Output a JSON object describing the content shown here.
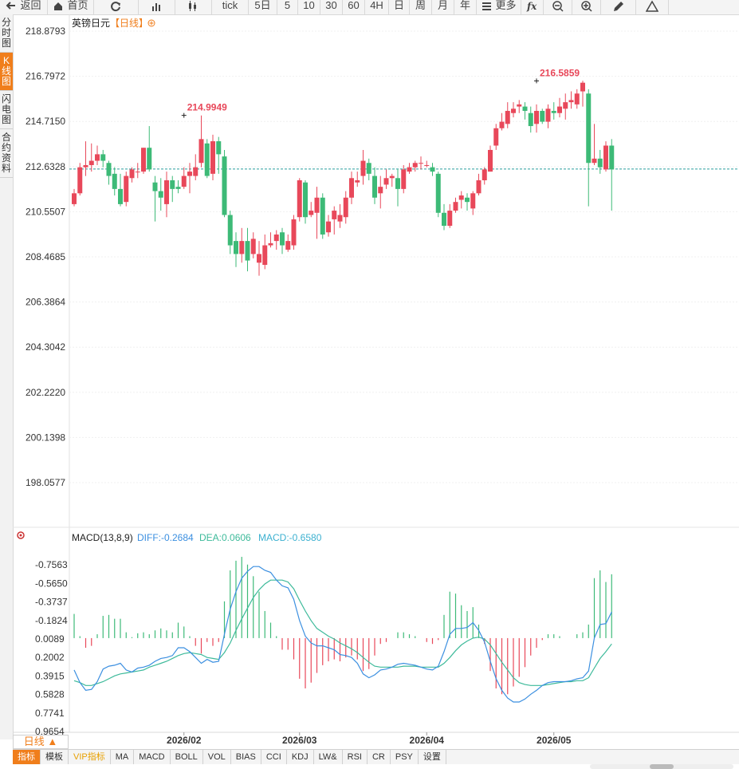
{
  "toolbar": [
    {
      "label": "返回",
      "icon": "back-arrow-icon"
    },
    {
      "label": "首页",
      "icon": "home-icon"
    },
    {
      "label": "",
      "icon": "refresh-icon"
    },
    {
      "label": "",
      "icon": "bar-chart-icon"
    },
    {
      "label": "",
      "icon": "candlestick-icon"
    },
    {
      "label": "tick",
      "icon": ""
    },
    {
      "label": "5日",
      "icon": ""
    },
    {
      "label": "5",
      "icon": ""
    },
    {
      "label": "10",
      "icon": ""
    },
    {
      "label": "30",
      "icon": ""
    },
    {
      "label": "60",
      "icon": ""
    },
    {
      "label": "4H",
      "icon": ""
    },
    {
      "label": "日",
      "icon": ""
    },
    {
      "label": "周",
      "icon": ""
    },
    {
      "label": "月",
      "icon": ""
    },
    {
      "label": "年",
      "icon": ""
    },
    {
      "label": "更多",
      "icon": "menu-icon"
    },
    {
      "label": "",
      "icon": "function-icon"
    },
    {
      "label": "",
      "icon": "zoom-out-icon"
    },
    {
      "label": "",
      "icon": "zoom-in-icon"
    },
    {
      "label": "",
      "icon": "pen-icon"
    },
    {
      "label": "",
      "icon": "triangle-icon"
    }
  ],
  "sidebar": [
    {
      "label": "分时图",
      "active": false
    },
    {
      "label": "K线图",
      "active": true
    },
    {
      "label": "闪电图",
      "active": false
    },
    {
      "label": "合约资料",
      "active": false
    }
  ],
  "header": {
    "title": "英镑日元",
    "period": "【日线】",
    "add_icon": "add-circle-icon"
  },
  "macd_header": {
    "label": "MACD(13,8,9)",
    "diff": "DIFF:-0.2684",
    "dea": "DEA:0.0606",
    "macd": "MACD:-0.6580",
    "icon": "gear-icon"
  },
  "period_selector": {
    "label": "日线 ▲"
  },
  "indicator_tabs": [
    {
      "label": "指标",
      "active": true
    },
    {
      "label": "模板"
    },
    {
      "label": "VIP指标",
      "vip": true
    },
    {
      "label": "MA"
    },
    {
      "label": "MACD"
    },
    {
      "label": "BOLL"
    },
    {
      "label": "VOL"
    },
    {
      "label": "BIAS"
    },
    {
      "label": "CCI"
    },
    {
      "label": "KDJ"
    },
    {
      "label": "LW&"
    },
    {
      "label": "RSI"
    },
    {
      "label": "CR"
    },
    {
      "label": "PSY"
    },
    {
      "label": "设置"
    }
  ],
  "colors": {
    "up": "#e8485a",
    "down": "#3dba77",
    "diff": "#3b8fe0",
    "dea": "#3dba9a",
    "accent": "#f07e1b",
    "last_price": "#2a9d9d"
  },
  "chart_data": [
    {
      "type": "candlestick",
      "title": "英镑日元",
      "y_ticks": [
        "218.8793",
        "216.7972",
        "214.7150",
        "212.6328",
        "210.5507",
        "208.4685",
        "206.3864",
        "204.3042",
        "202.2220",
        "200.1398",
        "198.0577"
      ],
      "ylim": [
        196.7,
        219.4
      ],
      "x_ticks": [
        {
          "label": "2026/02",
          "index": 19
        },
        {
          "label": "2026/03",
          "index": 39
        },
        {
          "label": "2026/04",
          "index": 61
        },
        {
          "label": "2026/05",
          "index": 83
        }
      ],
      "last_price": 212.52,
      "annotations": [
        {
          "text": "214.9949",
          "value": 214.9949,
          "index": 19
        },
        {
          "text": "216.5859",
          "value": 216.5859,
          "index": 80
        }
      ],
      "ohlc": [
        [
          210.9,
          211.4,
          211.6,
          210.8
        ],
        [
          211.4,
          212.6,
          212.8,
          211.3
        ],
        [
          212.6,
          212.7,
          213.8,
          212.2
        ],
        [
          212.7,
          212.9,
          213.7,
          212.4
        ],
        [
          212.9,
          213.2,
          213.6,
          212.7
        ],
        [
          213.2,
          212.9,
          213.4,
          212.6
        ],
        [
          212.8,
          212.2,
          212.9,
          211.8
        ],
        [
          212.3,
          211.6,
          212.6,
          211.3
        ],
        [
          211.6,
          210.9,
          212.3,
          210.8
        ],
        [
          211.0,
          212.2,
          212.4,
          210.8
        ],
        [
          212.1,
          212.5,
          212.6,
          211.9
        ],
        [
          212.4,
          212.4,
          212.8,
          212.1
        ],
        [
          212.4,
          213.5,
          213.5,
          212.3
        ],
        [
          213.5,
          212.5,
          214.5,
          212.4
        ],
        [
          211.9,
          211.5,
          212.2,
          210.1
        ],
        [
          211.5,
          211.2,
          212.1,
          210.6
        ],
        [
          210.9,
          212.0,
          212.4,
          210.3
        ],
        [
          212.0,
          211.6,
          212.2,
          211.0
        ],
        [
          211.7,
          211.6,
          212.0,
          211.4
        ],
        [
          211.7,
          212.2,
          212.6,
          211.6
        ],
        [
          212.2,
          212.4,
          212.8,
          211.4
        ],
        [
          212.2,
          212.6,
          213.2,
          212.0
        ],
        [
          212.8,
          213.9,
          214.99,
          212.6
        ],
        [
          213.7,
          212.2,
          213.9,
          212.1
        ],
        [
          212.3,
          213.8,
          214.1,
          212.0
        ],
        [
          213.8,
          213.2,
          214.0,
          212.3
        ],
        [
          213.1,
          210.4,
          213.4,
          210.3
        ],
        [
          210.4,
          209.0,
          210.6,
          208.6
        ],
        [
          209.2,
          208.6,
          209.6,
          208.0
        ],
        [
          208.6,
          209.2,
          209.8,
          208.2
        ],
        [
          209.2,
          208.3,
          209.8,
          207.8
        ],
        [
          208.6,
          209.3,
          209.6,
          208.4
        ],
        [
          208.2,
          208.6,
          209.2,
          207.6
        ],
        [
          208.1,
          209.0,
          209.5,
          207.9
        ],
        [
          209.0,
          209.1,
          209.6,
          208.9
        ],
        [
          209.2,
          209.5,
          209.7,
          208.8
        ],
        [
          209.6,
          209.0,
          209.8,
          208.6
        ],
        [
          208.8,
          209.2,
          209.5,
          208.7
        ],
        [
          209.0,
          210.2,
          210.4,
          208.8
        ],
        [
          210.3,
          212.0,
          212.1,
          210.1
        ],
        [
          211.9,
          210.3,
          212.0,
          210.0
        ],
        [
          210.4,
          210.6,
          211.0,
          210.3
        ],
        [
          210.5,
          211.2,
          211.7,
          209.3
        ],
        [
          211.2,
          209.5,
          211.4,
          209.3
        ],
        [
          209.6,
          210.1,
          210.4,
          209.4
        ],
        [
          210.2,
          210.6,
          210.8,
          209.5
        ],
        [
          210.1,
          210.4,
          210.9,
          209.8
        ],
        [
          210.3,
          211.2,
          211.5,
          210.0
        ],
        [
          211.2,
          212.1,
          212.4,
          210.9
        ],
        [
          211.9,
          212.0,
          212.4,
          211.7
        ],
        [
          212.2,
          212.9,
          213.4,
          211.8
        ],
        [
          212.8,
          212.3,
          213.0,
          212.0
        ],
        [
          212.2,
          211.2,
          212.6,
          210.9
        ],
        [
          211.4,
          211.7,
          212.2,
          210.7
        ],
        [
          211.8,
          212.1,
          212.5,
          211.6
        ],
        [
          212.1,
          212.2,
          212.3,
          211.7
        ],
        [
          212.1,
          211.6,
          212.5,
          210.8
        ],
        [
          211.6,
          212.5,
          212.7,
          211.4
        ],
        [
          212.4,
          212.6,
          212.8,
          212.3
        ],
        [
          212.6,
          212.8,
          212.9,
          212.4
        ],
        [
          212.8,
          212.8,
          213.1,
          212.5
        ],
        [
          212.7,
          212.7,
          212.9,
          212.6
        ],
        [
          212.6,
          212.4,
          212.8,
          212.2
        ],
        [
          212.3,
          210.5,
          212.4,
          210.3
        ],
        [
          210.5,
          209.9,
          210.9,
          209.7
        ],
        [
          209.9,
          210.6,
          210.9,
          209.8
        ],
        [
          210.6,
          211.0,
          211.2,
          210.5
        ],
        [
          211.1,
          211.3,
          211.5,
          210.7
        ],
        [
          211.2,
          211.0,
          211.4,
          210.6
        ],
        [
          210.7,
          211.4,
          211.5,
          210.4
        ],
        [
          211.4,
          212.0,
          212.3,
          211.3
        ],
        [
          212.0,
          212.5,
          212.6,
          211.8
        ],
        [
          212.4,
          213.4,
          213.6,
          212.4
        ],
        [
          213.6,
          214.4,
          214.6,
          213.4
        ],
        [
          214.4,
          214.7,
          215.1,
          214.3
        ],
        [
          214.6,
          215.2,
          215.6,
          214.4
        ],
        [
          215.1,
          215.3,
          215.6,
          214.9
        ],
        [
          215.4,
          215.5,
          215.7,
          215.1
        ],
        [
          215.4,
          215.2,
          215.6,
          214.8
        ],
        [
          215.1,
          214.5,
          215.4,
          214.2
        ],
        [
          214.6,
          215.2,
          215.5,
          214.2
        ],
        [
          215.2,
          214.7,
          215.3,
          214.6
        ],
        [
          214.7,
          215.3,
          215.5,
          214.4
        ],
        [
          215.2,
          215.1,
          215.6,
          214.8
        ],
        [
          215.1,
          215.4,
          215.8,
          214.9
        ],
        [
          215.3,
          215.6,
          216.0,
          214.8
        ],
        [
          215.6,
          215.7,
          216.1,
          215.3
        ],
        [
          215.5,
          216.0,
          216.2,
          215.3
        ],
        [
          216.1,
          216.5,
          216.59,
          215.4
        ],
        [
          216.0,
          212.8,
          216.2,
          210.8
        ],
        [
          212.8,
          213.0,
          214.6,
          212.7
        ]
      ],
      "ohlc_tail": [
        [
          213.0,
          212.6,
          213.4,
          212.3
        ],
        [
          212.5,
          213.6,
          213.8,
          212.4
        ],
        [
          213.6,
          212.5,
          213.9,
          210.6
        ]
      ]
    },
    {
      "type": "macd",
      "title": "MACD(13,8,9)",
      "y_ticks": [
        "0.9654",
        "0.7741",
        "0.5828",
        "0.3915",
        "0.2002",
        "0.0089",
        "-0.1824",
        "-0.3737",
        "-0.5650",
        "-0.7563"
      ],
      "ylim": [
        -1.0,
        1.04
      ],
      "diff": [
        0.33,
        0.46,
        0.54,
        0.53,
        0.45,
        0.32,
        0.29,
        0.28,
        0.26,
        0.33,
        0.35,
        0.31,
        0.3,
        0.28,
        0.24,
        0.21,
        0.2,
        0.18,
        0.1,
        0.1,
        0.14,
        0.2,
        0.26,
        0.22,
        0.25,
        0.24,
        -0.04,
        -0.3,
        -0.48,
        -0.62,
        -0.69,
        -0.74,
        -0.74,
        -0.7,
        -0.68,
        -0.6,
        -0.54,
        -0.52,
        -0.4,
        -0.18,
        -0.02,
        0.05,
        0.08,
        0.08,
        0.1,
        0.12,
        0.17,
        0.18,
        0.2,
        0.26,
        0.37,
        0.41,
        0.38,
        0.33,
        0.32,
        0.3,
        0.27,
        0.26,
        0.27,
        0.28,
        0.3,
        0.32,
        0.33,
        0.29,
        0.14,
        -0.04,
        -0.1,
        -0.1,
        -0.11,
        -0.16,
        -0.08,
        0.04,
        0.24,
        0.42,
        0.54,
        0.62,
        0.66,
        0.66,
        0.63,
        0.58,
        0.54,
        0.49,
        0.46,
        0.45,
        0.45,
        0.45,
        0.44,
        0.42,
        0.41,
        0.34,
        0.0,
        -0.14,
        -0.15,
        -0.27
      ],
      "dea": [
        0.44,
        0.46,
        0.49,
        0.49,
        0.47,
        0.45,
        0.42,
        0.39,
        0.37,
        0.36,
        0.35,
        0.34,
        0.33,
        0.3,
        0.28,
        0.26,
        0.24,
        0.21,
        0.18,
        0.16,
        0.15,
        0.16,
        0.17,
        0.2,
        0.21,
        0.22,
        0.15,
        0.05,
        -0.08,
        -0.2,
        -0.31,
        -0.42,
        -0.5,
        -0.56,
        -0.6,
        -0.6,
        -0.6,
        -0.58,
        -0.51,
        -0.39,
        -0.28,
        -0.18,
        -0.1,
        -0.06,
        -0.02,
        0.01,
        0.05,
        0.08,
        0.11,
        0.15,
        0.2,
        0.25,
        0.29,
        0.3,
        0.3,
        0.3,
        0.3,
        0.29,
        0.29,
        0.29,
        0.3,
        0.3,
        0.3,
        0.3,
        0.26,
        0.2,
        0.13,
        0.07,
        0.03,
        0.0,
        -0.01,
        0.01,
        0.07,
        0.16,
        0.25,
        0.33,
        0.41,
        0.46,
        0.48,
        0.49,
        0.49,
        0.49,
        0.48,
        0.47,
        0.46,
        0.45,
        0.45,
        0.44,
        0.44,
        0.41,
        0.31,
        0.21,
        0.14,
        0.06
      ],
      "hist": [
        -0.25,
        -0.02,
        0.1,
        0.08,
        -0.04,
        -0.23,
        -0.24,
        -0.2,
        -0.2,
        -0.06,
        -0.01,
        -0.05,
        -0.06,
        -0.04,
        -0.08,
        -0.1,
        -0.08,
        -0.06,
        -0.16,
        -0.12,
        -0.02,
        0.08,
        0.16,
        0.04,
        0.08,
        0.04,
        -0.38,
        -0.7,
        -0.8,
        -0.84,
        -0.76,
        -0.64,
        -0.48,
        -0.28,
        -0.16,
        -0.02,
        0.12,
        0.12,
        0.22,
        0.42,
        0.52,
        0.46,
        0.36,
        0.28,
        0.24,
        0.22,
        0.24,
        0.2,
        0.18,
        0.22,
        0.34,
        0.32,
        0.18,
        0.06,
        0.04,
        0.0,
        -0.06,
        -0.06,
        -0.04,
        -0.02,
        0.0,
        0.04,
        0.06,
        0.02,
        -0.24,
        -0.48,
        -0.46,
        -0.34,
        -0.28,
        -0.32,
        -0.14,
        0.06,
        0.34,
        0.52,
        0.58,
        0.58,
        0.5,
        0.4,
        0.3,
        0.18,
        0.1,
        0.02,
        -0.04,
        -0.04,
        -0.02,
        0.0,
        0.0,
        -0.04,
        -0.06,
        -0.14,
        -0.62,
        -0.7,
        -0.58,
        -0.66
      ]
    }
  ]
}
